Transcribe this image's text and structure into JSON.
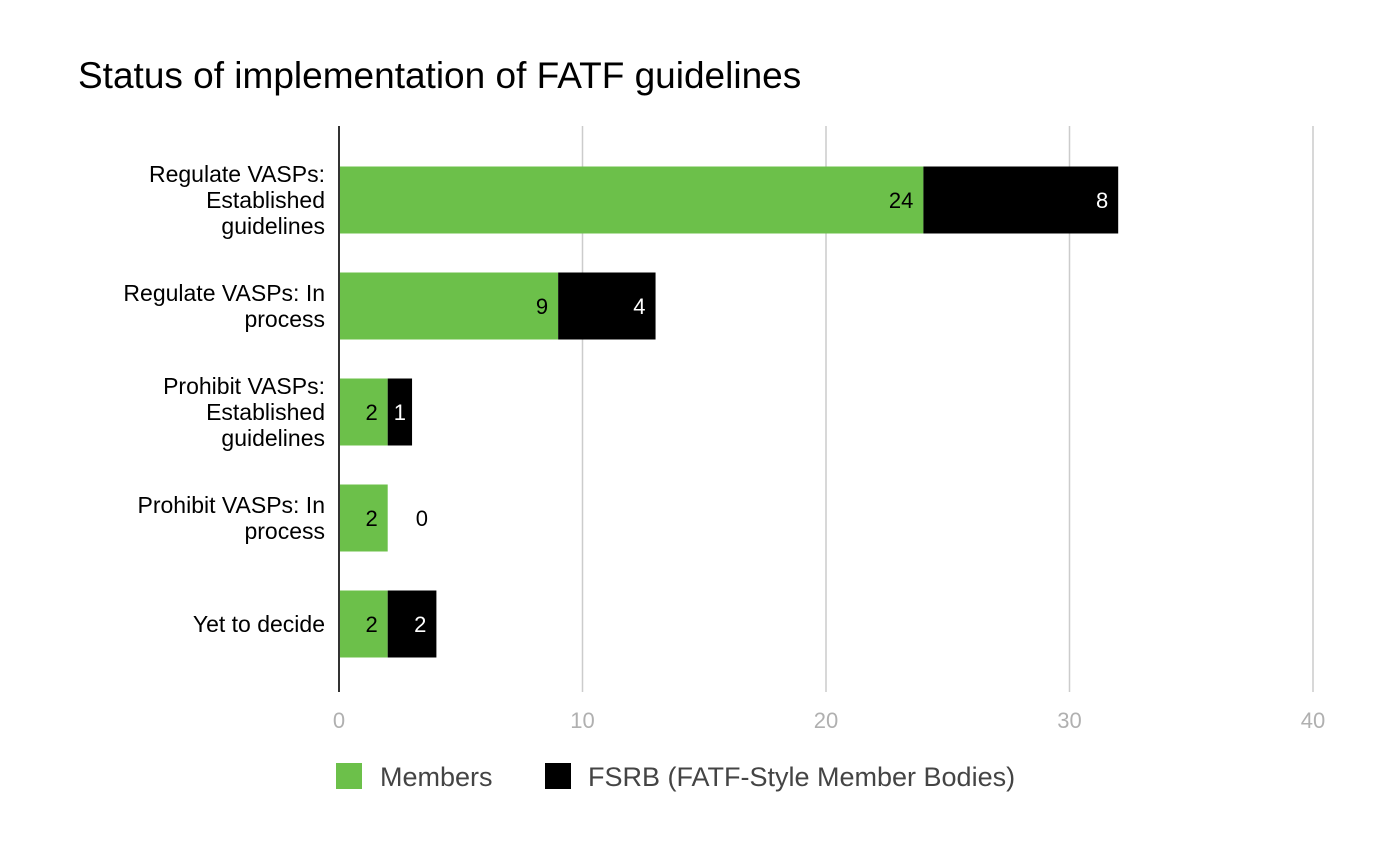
{
  "chart_data": {
    "type": "bar",
    "orientation": "horizontal",
    "stacked": true,
    "title": "Status of implementation of FATF guidelines",
    "xlabel": "",
    "ylabel": "",
    "categories": [
      "Regulate VASPs: Established guidelines",
      "Regulate VASPs: In process",
      "Prohibit VASPs: Established guidelines",
      "Prohibit VASPs: In process",
      "Yet to decide"
    ],
    "category_lines": [
      [
        "Regulate VASPs:",
        "Established",
        "guidelines"
      ],
      [
        "Regulate VASPs: In",
        "process"
      ],
      [
        "Prohibit VASPs:",
        "Established",
        "guidelines"
      ],
      [
        "Prohibit VASPs: In",
        "process"
      ],
      [
        "Yet to decide"
      ]
    ],
    "series": [
      {
        "name": "Members",
        "values": [
          24,
          9,
          2,
          2,
          2
        ],
        "color": "#6cc04a",
        "label_color": "#000000"
      },
      {
        "name": "FSRB (FATF-Style Member Bodies)",
        "values": [
          8,
          4,
          1,
          0,
          2
        ],
        "color": "#000000",
        "label_color": "#ffffff"
      }
    ],
    "xlim": [
      0,
      40
    ],
    "x_ticks": [
      0,
      10,
      20,
      30,
      40
    ],
    "grid": true,
    "legend_position": "bottom"
  }
}
